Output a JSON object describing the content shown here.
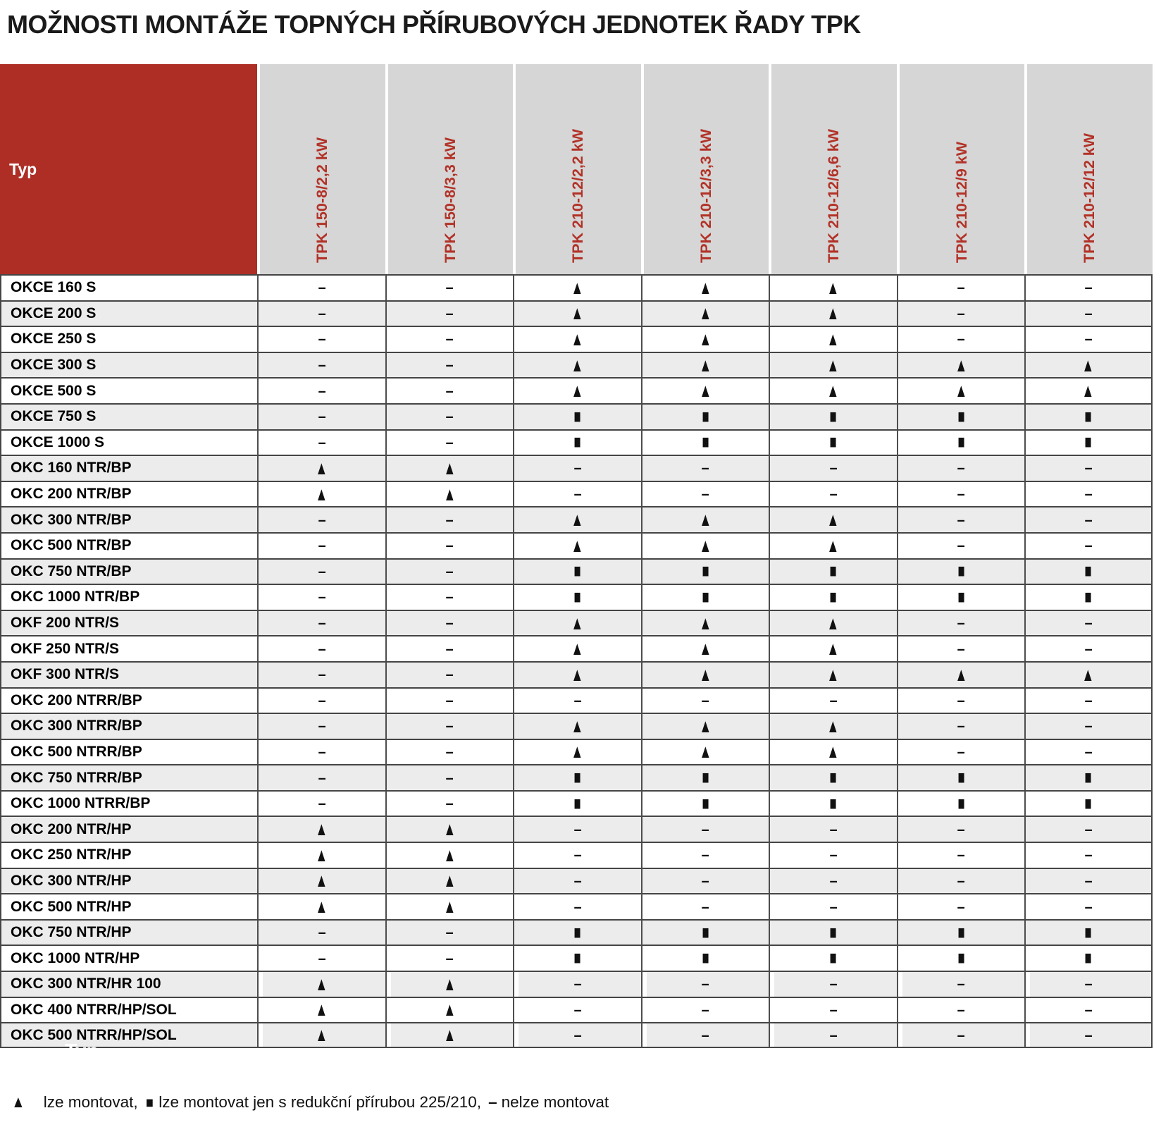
{
  "title": "MOŽNOSTI MONTÁŽE TOPNÝCH PŘÍRUBOVÝCH JEDNOTEK ŘADY TPK",
  "colors": {
    "accent_red": "#AE2E26",
    "header_red_text": "#B23227",
    "header_gray": "#D6D6D6",
    "row_alt_gray": "#ECECEC"
  },
  "table": {
    "corner_label": "Typ",
    "columns": [
      "TPK 150-8/2,2 kW",
      "TPK 150-8/3,3 kW",
      "TPK 210-12/2,2 kW",
      "TPK 210-12/3,3 kW",
      "TPK 210-12/6,6 kW",
      "TPK 210-12/9 kW",
      "TPK 210-12/12 kW"
    ],
    "ghost_label": "Typ",
    "rows": [
      {
        "label": "OKCE 160 S",
        "values": [
          "–",
          "–",
          "▲",
          "▲",
          "▲",
          "–",
          "–"
        ]
      },
      {
        "label": "OKCE 200 S",
        "values": [
          "–",
          "–",
          "▲",
          "▲",
          "▲",
          "–",
          "–"
        ]
      },
      {
        "label": "OKCE 250 S",
        "values": [
          "–",
          "–",
          "▲",
          "▲",
          "▲",
          "–",
          "–"
        ]
      },
      {
        "label": "OKCE 300 S",
        "values": [
          "–",
          "–",
          "▲",
          "▲",
          "▲",
          "▲",
          "▲"
        ]
      },
      {
        "label": "OKCE 500 S",
        "values": [
          "–",
          "–",
          "▲",
          "▲",
          "▲",
          "▲",
          "▲"
        ]
      },
      {
        "label": "OKCE 750 S",
        "values": [
          "–",
          "–",
          "■",
          "■",
          "■",
          "■",
          "■"
        ]
      },
      {
        "label": "OKCE 1000 S",
        "values": [
          "–",
          "–",
          "■",
          "■",
          "■",
          "■",
          "■"
        ]
      },
      {
        "label": "OKC 160 NTR/BP",
        "values": [
          "▲",
          "▲",
          "–",
          "–",
          "–",
          "–",
          "–"
        ]
      },
      {
        "label": "OKC 200 NTR/BP",
        "values": [
          "▲",
          "▲",
          "–",
          "–",
          "–",
          "–",
          "–"
        ]
      },
      {
        "label": "OKC 300 NTR/BP",
        "values": [
          "–",
          "–",
          "▲",
          "▲",
          "▲",
          "–",
          "–"
        ]
      },
      {
        "label": "OKC 500 NTR/BP",
        "values": [
          "–",
          "–",
          "▲",
          "▲",
          "▲",
          "–",
          "–"
        ]
      },
      {
        "label": "OKC 750 NTR/BP",
        "values": [
          "–",
          "–",
          "■",
          "■",
          "■",
          "■",
          "■"
        ]
      },
      {
        "label": "OKC 1000 NTR/BP",
        "values": [
          "–",
          "–",
          "■",
          "■",
          "■",
          "■",
          "■"
        ]
      },
      {
        "label": "OKF 200 NTR/S",
        "values": [
          "–",
          "–",
          "▲",
          "▲",
          "▲",
          "–",
          "–"
        ]
      },
      {
        "label": "OKF 250 NTR/S",
        "values": [
          "–",
          "–",
          "▲",
          "▲",
          "▲",
          "–",
          "–"
        ]
      },
      {
        "label": "OKF 300 NTR/S",
        "values": [
          "–",
          "–",
          "▲",
          "▲",
          "▲",
          "▲",
          "▲"
        ]
      },
      {
        "label": "OKC 200 NTRR/BP",
        "values": [
          "–",
          "–",
          "–",
          "–",
          "–",
          "–",
          "–"
        ]
      },
      {
        "label": "OKC 300 NTRR/BP",
        "values": [
          "–",
          "–",
          "▲",
          "▲",
          "▲",
          "–",
          "–"
        ]
      },
      {
        "label": "OKC 500 NTRR/BP",
        "values": [
          "–",
          "–",
          "▲",
          "▲",
          "▲",
          "–",
          "–"
        ]
      },
      {
        "label": "OKC 750 NTRR/BP",
        "values": [
          "–",
          "–",
          "■",
          "■",
          "■",
          "■",
          "■"
        ]
      },
      {
        "label": "OKC 1000 NTRR/BP",
        "values": [
          "–",
          "–",
          "■",
          "■",
          "■",
          "■",
          "■"
        ]
      },
      {
        "label": "OKC 200 NTR/HP",
        "values": [
          "▲",
          "▲",
          "–",
          "–",
          "–",
          "–",
          "–"
        ]
      },
      {
        "label": "OKC 250 NTR/HP",
        "values": [
          "▲",
          "▲",
          "–",
          "–",
          "–",
          "–",
          "–"
        ]
      },
      {
        "label": "OKC 300 NTR/HP",
        "values": [
          "▲",
          "▲",
          "–",
          "–",
          "–",
          "–",
          "–"
        ]
      },
      {
        "label": "OKC 500 NTR/HP",
        "values": [
          "▲",
          "▲",
          "–",
          "–",
          "–",
          "–",
          "–"
        ]
      },
      {
        "label": "OKC 750 NTR/HP",
        "values": [
          "–",
          "–",
          "■",
          "■",
          "■",
          "■",
          "■"
        ]
      },
      {
        "label": "OKC 1000 NTR/HP",
        "values": [
          "–",
          "–",
          "■",
          "■",
          "■",
          "■",
          "■"
        ]
      },
      {
        "label": "OKC 300 NTR/HR 100",
        "values": [
          "▲",
          "▲",
          "–",
          "–",
          "–",
          "–",
          "–"
        ]
      },
      {
        "label": "OKC 400 NTRR/HP/SOL",
        "values": [
          "▲",
          "▲",
          "–",
          "–",
          "–",
          "–",
          "–"
        ]
      },
      {
        "label": "OKC 500 NTRR/HP/SOL",
        "values": [
          "▲",
          "▲",
          "–",
          "–",
          "–",
          "–",
          "–"
        ]
      }
    ]
  },
  "legend": {
    "items": [
      {
        "symbol": "▲",
        "text": "lze montovat,"
      },
      {
        "symbol": "■",
        "text": "lze montovat jen s redukční přírubou 225/210,"
      },
      {
        "symbol": "–",
        "text": "nelze montovat"
      }
    ]
  }
}
